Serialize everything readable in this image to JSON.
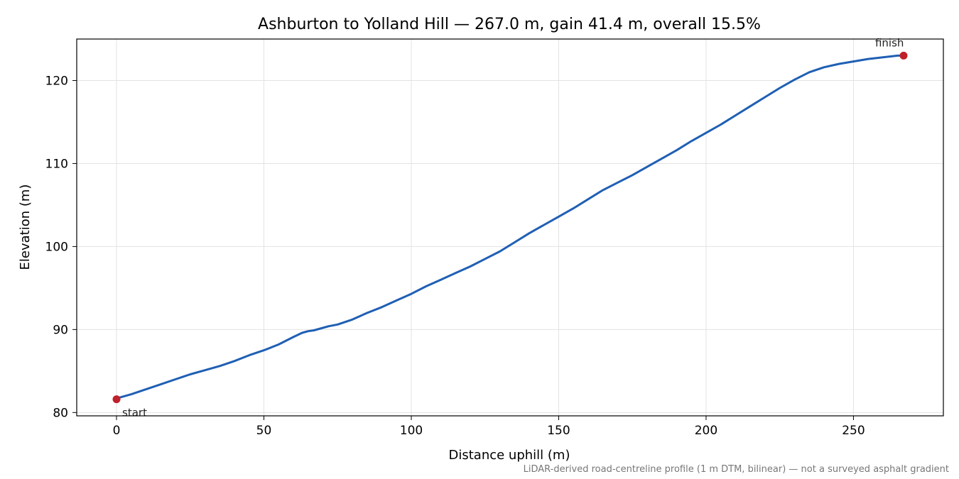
{
  "chart_data": {
    "type": "line",
    "title": "Ashburton to Yolland Hill — 267.0 m, gain 41.4 m, overall 15.5%",
    "xlabel": "Distance uphill (m)",
    "ylabel": "Elevation (m)",
    "xlim": [
      -13.5,
      280.5
    ],
    "ylim": [
      79.6,
      125
    ],
    "xticks": [
      0,
      50,
      100,
      150,
      200,
      250
    ],
    "yticks": [
      80,
      90,
      100,
      110,
      120
    ],
    "grid": true,
    "footnote": "LiDAR-derived road-centreline profile (1 m DTM, bilinear) — not a surveyed asphalt gradient",
    "colors": {
      "line": "#1f5fb4",
      "marker": "#c0202a",
      "grid": "#e3e3e3"
    },
    "series": [
      {
        "x": [
          0,
          5,
          10,
          15,
          20,
          25,
          30,
          35,
          40,
          45,
          50,
          55,
          60,
          63,
          65,
          67,
          70,
          72,
          75,
          80,
          85,
          90,
          95,
          100,
          105,
          110,
          115,
          120,
          125,
          130,
          135,
          140,
          145,
          150,
          155,
          160,
          165,
          170,
          175,
          180,
          185,
          190,
          195,
          200,
          205,
          210,
          215,
          220,
          225,
          230,
          235,
          240,
          245,
          250,
          255,
          260,
          265,
          267
        ],
        "y": [
          81.7,
          82.2,
          82.8,
          83.4,
          84.0,
          84.6,
          85.1,
          85.6,
          86.2,
          86.9,
          87.5,
          88.2,
          89.1,
          89.6,
          89.8,
          89.9,
          90.2,
          90.4,
          90.6,
          91.2,
          92.0,
          92.7,
          93.5,
          94.3,
          95.2,
          96.0,
          96.8,
          97.6,
          98.5,
          99.4,
          100.5,
          101.6,
          102.6,
          103.6,
          104.6,
          105.7,
          106.8,
          107.7,
          108.6,
          109.6,
          110.6,
          111.6,
          112.7,
          113.7,
          114.7,
          115.8,
          116.9,
          118.0,
          119.1,
          120.1,
          121.0,
          121.6,
          122.0,
          122.3,
          122.6,
          122.8,
          123.0,
          123.0
        ]
      }
    ],
    "annotations": [
      {
        "label": "start",
        "x": 0,
        "y": 81.6
      },
      {
        "label": "finish",
        "x": 267,
        "y": 123.0
      }
    ]
  }
}
